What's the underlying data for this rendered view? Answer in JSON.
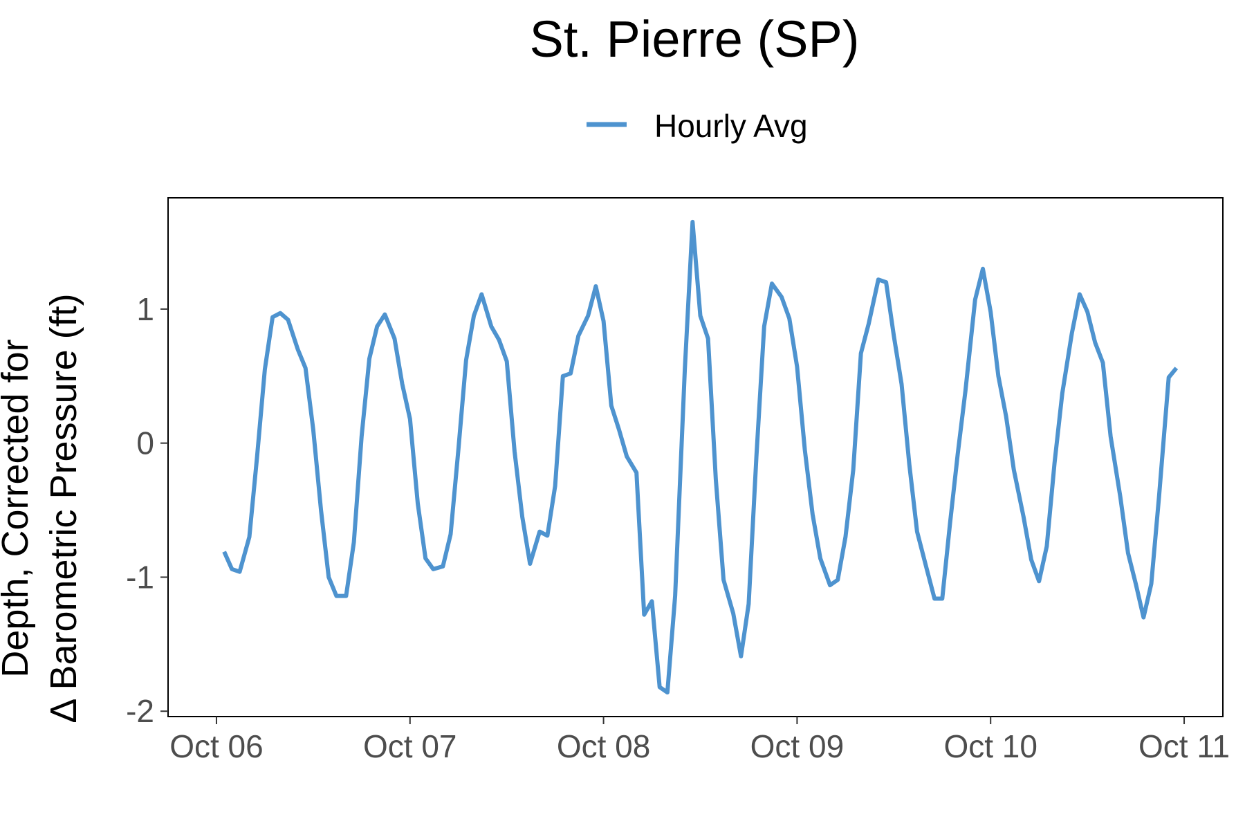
{
  "chart_data": {
    "type": "line",
    "title": "St. Pierre (SP)",
    "xlabel": "",
    "ylabel_line1": "Depth, Corrected for",
    "ylabel_line2": "Δ Barometric Pressure (ft)",
    "x_unit": "days since Oct 06",
    "xlim": [
      -0.25,
      5.2
    ],
    "ylim": [
      -2.04,
      1.83
    ],
    "x_ticks": [
      {
        "value": 0,
        "label": "Oct 06"
      },
      {
        "value": 1,
        "label": "Oct 07"
      },
      {
        "value": 2,
        "label": "Oct 08"
      },
      {
        "value": 3,
        "label": "Oct 09"
      },
      {
        "value": 4,
        "label": "Oct 10"
      },
      {
        "value": 5,
        "label": "Oct 11"
      }
    ],
    "y_ticks": [
      {
        "value": 1,
        "label": "1"
      },
      {
        "value": 0,
        "label": "0"
      },
      {
        "value": -1,
        "label": "-1"
      },
      {
        "value": -2,
        "label": "-2"
      }
    ],
    "grid": false,
    "legend_position": "top",
    "series": [
      {
        "name": "Hourly Avg",
        "color": "#4e93cf",
        "points": [
          [
            0.04,
            -0.81
          ],
          [
            0.08,
            -0.94
          ],
          [
            0.12,
            -0.96
          ],
          [
            0.17,
            -0.7
          ],
          [
            0.21,
            -0.1
          ],
          [
            0.25,
            0.55
          ],
          [
            0.29,
            0.94
          ],
          [
            0.33,
            0.97
          ],
          [
            0.37,
            0.92
          ],
          [
            0.42,
            0.7
          ],
          [
            0.46,
            0.56
          ],
          [
            0.5,
            0.1
          ],
          [
            0.54,
            -0.5
          ],
          [
            0.58,
            -1.0
          ],
          [
            0.62,
            -1.14
          ],
          [
            0.67,
            -1.14
          ],
          [
            0.71,
            -0.74
          ],
          [
            0.75,
            0.05
          ],
          [
            0.79,
            0.63
          ],
          [
            0.83,
            0.87
          ],
          [
            0.87,
            0.96
          ],
          [
            0.92,
            0.78
          ],
          [
            0.96,
            0.44
          ],
          [
            1.0,
            0.18
          ],
          [
            1.04,
            -0.45
          ],
          [
            1.08,
            -0.86
          ],
          [
            1.12,
            -0.94
          ],
          [
            1.17,
            -0.92
          ],
          [
            1.21,
            -0.68
          ],
          [
            1.25,
            -0.05
          ],
          [
            1.29,
            0.62
          ],
          [
            1.33,
            0.95
          ],
          [
            1.37,
            1.11
          ],
          [
            1.42,
            0.87
          ],
          [
            1.46,
            0.77
          ],
          [
            1.5,
            0.61
          ],
          [
            1.54,
            -0.06
          ],
          [
            1.58,
            -0.55
          ],
          [
            1.62,
            -0.9
          ],
          [
            1.67,
            -0.66
          ],
          [
            1.71,
            -0.69
          ],
          [
            1.75,
            -0.32
          ],
          [
            1.79,
            0.5
          ],
          [
            1.83,
            0.52
          ],
          [
            1.87,
            0.8
          ],
          [
            1.92,
            0.95
          ],
          [
            1.96,
            1.17
          ],
          [
            2.0,
            0.91
          ],
          [
            2.04,
            0.28
          ],
          [
            2.08,
            0.1
          ],
          [
            2.12,
            -0.1
          ],
          [
            2.17,
            -0.22
          ],
          [
            2.21,
            -1.28
          ],
          [
            2.25,
            -1.18
          ],
          [
            2.29,
            -1.82
          ],
          [
            2.33,
            -1.86
          ],
          [
            2.37,
            -1.14
          ],
          [
            2.42,
            0.55
          ],
          [
            2.46,
            1.65
          ],
          [
            2.5,
            0.95
          ],
          [
            2.54,
            0.78
          ],
          [
            2.58,
            -0.27
          ],
          [
            2.62,
            -1.02
          ],
          [
            2.67,
            -1.27
          ],
          [
            2.71,
            -1.59
          ],
          [
            2.75,
            -1.2
          ],
          [
            2.79,
            -0.1
          ],
          [
            2.83,
            0.87
          ],
          [
            2.87,
            1.19
          ],
          [
            2.92,
            1.09
          ],
          [
            2.96,
            0.93
          ],
          [
            3.0,
            0.57
          ],
          [
            3.04,
            -0.05
          ],
          [
            3.08,
            -0.53
          ],
          [
            3.12,
            -0.86
          ],
          [
            3.17,
            -1.06
          ],
          [
            3.21,
            -1.02
          ],
          [
            3.25,
            -0.7
          ],
          [
            3.29,
            -0.2
          ],
          [
            3.33,
            0.67
          ],
          [
            3.37,
            0.89
          ],
          [
            3.42,
            1.22
          ],
          [
            3.46,
            1.2
          ],
          [
            3.5,
            0.8
          ],
          [
            3.54,
            0.44
          ],
          [
            3.58,
            -0.16
          ],
          [
            3.62,
            -0.66
          ],
          [
            3.67,
            -0.94
          ],
          [
            3.71,
            -1.16
          ],
          [
            3.75,
            -1.16
          ],
          [
            3.79,
            -0.6
          ],
          [
            3.83,
            -0.08
          ],
          [
            3.87,
            0.39
          ],
          [
            3.92,
            1.07
          ],
          [
            3.96,
            1.3
          ],
          [
            4.0,
            0.98
          ],
          [
            4.04,
            0.5
          ],
          [
            4.08,
            0.2
          ],
          [
            4.12,
            -0.2
          ],
          [
            4.17,
            -0.55
          ],
          [
            4.21,
            -0.87
          ],
          [
            4.25,
            -1.03
          ],
          [
            4.29,
            -0.77
          ],
          [
            4.33,
            -0.15
          ],
          [
            4.37,
            0.37
          ],
          [
            4.42,
            0.82
          ],
          [
            4.46,
            1.11
          ],
          [
            4.5,
            0.98
          ],
          [
            4.54,
            0.75
          ],
          [
            4.58,
            0.6
          ],
          [
            4.62,
            0.05
          ],
          [
            4.67,
            -0.4
          ],
          [
            4.71,
            -0.82
          ],
          [
            4.75,
            -1.05
          ],
          [
            4.79,
            -1.3
          ],
          [
            4.83,
            -1.05
          ],
          [
            4.87,
            -0.4
          ],
          [
            4.92,
            0.49
          ],
          [
            4.96,
            0.56
          ]
        ]
      }
    ]
  }
}
